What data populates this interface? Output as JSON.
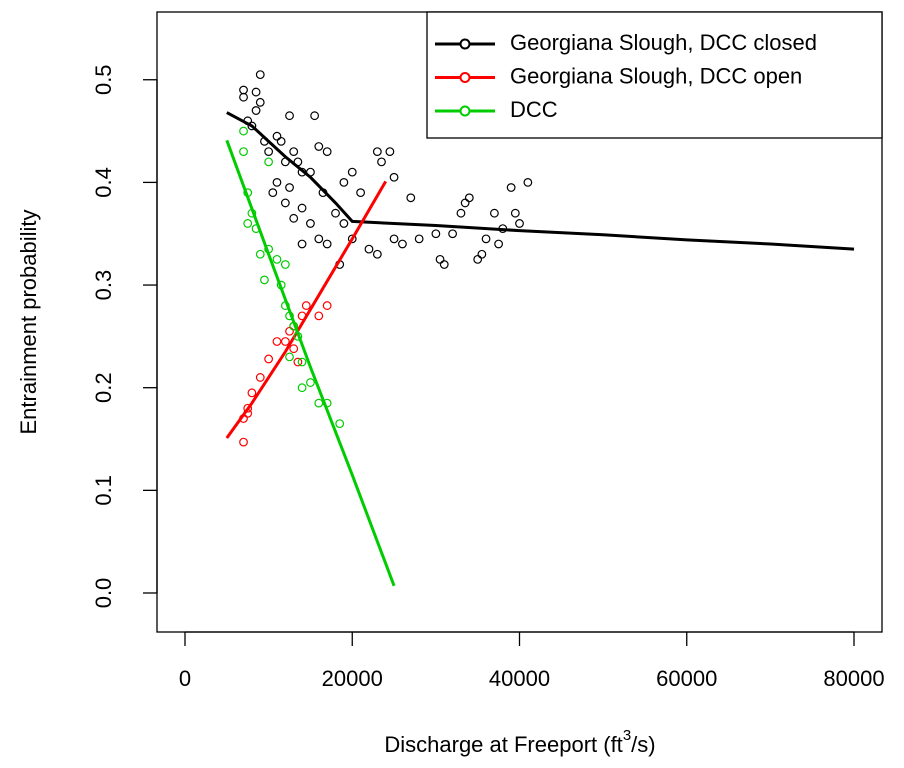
{
  "chart_data": {
    "type": "scatter",
    "x_label": {
      "text": "Discharge at Freeport (ft",
      "superscript": "3",
      "suffix": "/s)"
    },
    "y_label": "Entrainment probability",
    "xlim": [
      -3348,
      83348
    ],
    "ylim": [
      -0.038,
      0.566
    ],
    "xticks": [
      0,
      20000,
      40000,
      60000,
      80000
    ],
    "yticks": [
      {
        "value": 0,
        "label": "0.0"
      },
      0.1,
      0.2,
      0.3,
      0.4,
      0.5
    ],
    "legend": "top-right",
    "series": [
      {
        "name": "Georgiana Slough, DCC closed",
        "color": "#000000",
        "x": [
          7000,
          7000,
          8500,
          9000,
          9000,
          8500,
          7500,
          8000,
          9500,
          10000,
          11000,
          11500,
          12000,
          12500,
          13000,
          14000,
          15500,
          16000,
          17000,
          16500,
          18000,
          19000,
          20000,
          21000,
          23000,
          23500,
          24500,
          25000,
          10500,
          11000,
          12000,
          13000,
          14000,
          12500,
          15000,
          16000,
          17000,
          18500,
          19000,
          20000,
          22000,
          23000,
          25000,
          26000,
          27000,
          28000,
          30000,
          30500,
          31000,
          32000,
          33000,
          33500,
          34000,
          35000,
          35500,
          36000,
          37000,
          37500,
          38000,
          39000,
          39500,
          40000,
          41000,
          14000,
          13500,
          15000
        ],
        "values": [
          0.49,
          0.483,
          0.488,
          0.505,
          0.478,
          0.47,
          0.46,
          0.455,
          0.44,
          0.43,
          0.445,
          0.44,
          0.42,
          0.465,
          0.43,
          0.41,
          0.465,
          0.435,
          0.43,
          0.39,
          0.37,
          0.4,
          0.41,
          0.39,
          0.43,
          0.42,
          0.43,
          0.405,
          0.39,
          0.4,
          0.38,
          0.365,
          0.375,
          0.395,
          0.36,
          0.345,
          0.34,
          0.32,
          0.36,
          0.345,
          0.335,
          0.33,
          0.345,
          0.34,
          0.385,
          0.345,
          0.35,
          0.325,
          0.32,
          0.35,
          0.37,
          0.38,
          0.385,
          0.325,
          0.33,
          0.345,
          0.37,
          0.34,
          0.355,
          0.395,
          0.37,
          0.36,
          0.4,
          0.34,
          0.42,
          0.41
        ],
        "fit": {
          "x": [
            5000,
            8000,
            10000,
            12000,
            15000,
            18000,
            20000,
            25000,
            30000,
            40000,
            50000,
            60000,
            70000,
            80000
          ],
          "values": [
            0.468,
            0.455,
            0.44,
            0.425,
            0.405,
            0.38,
            0.362,
            0.36,
            0.358,
            0.353,
            0.349,
            0.344,
            0.34,
            0.335
          ]
        }
      },
      {
        "name": "Georgiana Slough, DCC open",
        "color": "#ff0000",
        "x": [
          7000,
          7000,
          7500,
          8000,
          9000,
          10000,
          11000,
          12000,
          12500,
          13000,
          13500,
          14000,
          14500,
          16000,
          17000,
          7500,
          13000
        ],
        "values": [
          0.147,
          0.17,
          0.18,
          0.195,
          0.21,
          0.228,
          0.245,
          0.245,
          0.255,
          0.26,
          0.225,
          0.27,
          0.28,
          0.27,
          0.28,
          0.175,
          0.238
        ],
        "fit": {
          "x": [
            5000,
            8000,
            12000,
            16000,
            20000,
            24000
          ],
          "values": [
            0.151,
            0.185,
            0.235,
            0.29,
            0.345,
            0.401
          ]
        }
      },
      {
        "name": "DCC",
        "color": "#00cc00",
        "x": [
          7000,
          7000,
          7500,
          7500,
          8000,
          8500,
          9000,
          10000,
          9500,
          11000,
          12000,
          11500,
          12000,
          12500,
          13000,
          13500,
          14000,
          14000,
          15000,
          16000,
          17000,
          18500,
          12500,
          10000
        ],
        "values": [
          0.45,
          0.43,
          0.39,
          0.36,
          0.37,
          0.355,
          0.33,
          0.335,
          0.305,
          0.325,
          0.32,
          0.3,
          0.28,
          0.27,
          0.26,
          0.25,
          0.225,
          0.2,
          0.205,
          0.185,
          0.185,
          0.165,
          0.23,
          0.42
        ],
        "fit": {
          "x": [
            5000,
            10000,
            15000,
            20000,
            25000
          ],
          "values": [
            0.441,
            0.33,
            0.22,
            0.115,
            0.007
          ]
        }
      }
    ]
  }
}
